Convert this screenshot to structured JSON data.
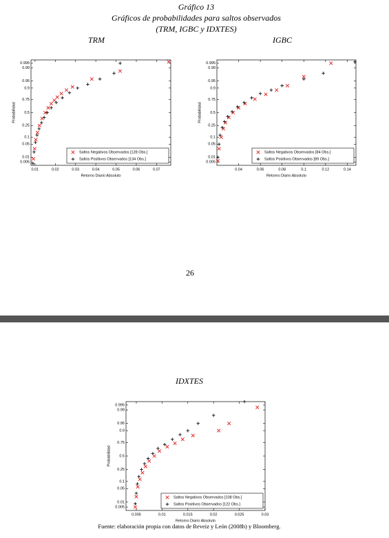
{
  "header": {
    "label": "Gráfico 13",
    "title": "Gráficos de probabilidades para saltos observados",
    "subtitle": "(TRM, IGBC y IDXTES)"
  },
  "page_number": "26",
  "source": "Fuente: elaboración propia con datos de Reveiz y León (2008b) y Bloomberg.",
  "chart_data": [
    {
      "type": "scatter",
      "title": "TRM",
      "x_label": "Retorno Diario Absoluto",
      "y_label": "Probabilidad",
      "yscale": "probability",
      "legend": "lower right",
      "xlim": [
        0.008,
        0.077
      ],
      "xticks": [
        0.01,
        0.02,
        0.03,
        0.04,
        0.05,
        0.06,
        0.07
      ],
      "ylim": [
        0.003,
        0.997
      ],
      "yticks": [
        0.005,
        0.01,
        0.05,
        0.1,
        0.25,
        0.5,
        0.75,
        0.9,
        0.95,
        0.99,
        0.995
      ],
      "series": [
        {
          "name": "Saltos Negativos Observados [128 Obs.]",
          "color": "#e0201b",
          "marker": "x",
          "x": [
            0.0092,
            0.0098,
            0.0104,
            0.0112,
            0.0122,
            0.0135,
            0.015,
            0.0165,
            0.018,
            0.0195,
            0.021,
            0.023,
            0.0255,
            0.0285,
            0.038,
            0.052,
            0.076
          ],
          "values": [
            0.008,
            0.03,
            0.08,
            0.15,
            0.25,
            0.38,
            0.5,
            0.6,
            0.68,
            0.74,
            0.79,
            0.84,
            0.88,
            0.91,
            0.96,
            0.985,
            0.996
          ]
        },
        {
          "name": "Saltos Positivos Observados [134 Obs.]",
          "color": "#111111",
          "marker": "+",
          "x": [
            0.009,
            0.0095,
            0.0102,
            0.011,
            0.012,
            0.0132,
            0.0145,
            0.016,
            0.018,
            0.0205,
            0.0235,
            0.027,
            0.031,
            0.036,
            0.042,
            0.049,
            0.052
          ],
          "values": [
            0.004,
            0.02,
            0.06,
            0.12,
            0.2,
            0.3,
            0.4,
            0.5,
            0.6,
            0.7,
            0.78,
            0.85,
            0.9,
            0.93,
            0.96,
            0.98,
            0.995
          ]
        }
      ]
    },
    {
      "type": "scatter",
      "title": "IGBC",
      "x_label": "Retorno Diario Absoluto",
      "y_label": "Probabilidad",
      "yscale": "probability",
      "legend": "lower right",
      "xlim": [
        0.02,
        0.148
      ],
      "xticks": [
        0.04,
        0.06,
        0.08,
        0.1,
        0.12,
        0.14
      ],
      "ylim": [
        0.003,
        0.997
      ],
      "yticks": [
        0.005,
        0.01,
        0.05,
        0.1,
        0.25,
        0.5,
        0.75,
        0.9,
        0.95,
        0.99,
        0.995
      ],
      "series": [
        {
          "name": "Saltos Negativos Observados [84 Obs.]",
          "color": "#e0201b",
          "marker": "x",
          "x": [
            0.021,
            0.022,
            0.024,
            0.026,
            0.028,
            0.031,
            0.035,
            0.04,
            0.046,
            0.055,
            0.065,
            0.075,
            0.085,
            0.1,
            0.125
          ],
          "values": [
            0.006,
            0.03,
            0.1,
            0.2,
            0.3,
            0.4,
            0.5,
            0.6,
            0.68,
            0.76,
            0.83,
            0.88,
            0.92,
            0.97,
            0.995
          ]
        },
        {
          "name": "Saltos Positivos Observados [89 Obs.]",
          "color": "#111111",
          "marker": "+",
          "x": [
            0.021,
            0.022,
            0.023,
            0.025,
            0.027,
            0.03,
            0.034,
            0.039,
            0.045,
            0.052,
            0.06,
            0.07,
            0.08,
            0.1,
            0.118,
            0.147
          ],
          "values": [
            0.01,
            0.05,
            0.12,
            0.22,
            0.32,
            0.42,
            0.52,
            0.62,
            0.7,
            0.78,
            0.84,
            0.88,
            0.92,
            0.96,
            0.98,
            0.996
          ]
        }
      ]
    },
    {
      "type": "scatter",
      "title": "IDXTES",
      "x_label": "Retorno Diario Absoluto",
      "y_label": "Probabilidad",
      "yscale": "probability",
      "legend": "lower right",
      "xlim": [
        0.003,
        0.03
      ],
      "xticks": [
        0.005,
        0.01,
        0.015,
        0.02,
        0.025,
        0.03
      ],
      "ylim": [
        0.003,
        0.997
      ],
      "yticks": [
        0.005,
        0.01,
        0.05,
        0.1,
        0.25,
        0.5,
        0.75,
        0.9,
        0.95,
        0.99,
        0.995
      ],
      "series": [
        {
          "name": "Saltos Negativos Observados [108 Obs.]",
          "color": "#e0201b",
          "marker": "x",
          "x": [
            0.0048,
            0.005,
            0.0053,
            0.0057,
            0.0062,
            0.0068,
            0.0075,
            0.0085,
            0.0095,
            0.011,
            0.0125,
            0.014,
            0.016,
            0.021,
            0.023,
            0.0285
          ],
          "values": [
            0.005,
            0.02,
            0.06,
            0.12,
            0.2,
            0.3,
            0.4,
            0.5,
            0.6,
            0.68,
            0.74,
            0.8,
            0.85,
            0.9,
            0.95,
            0.993
          ]
        },
        {
          "name": "Saltos Positivos Observados [122 Obs.]",
          "color": "#111111",
          "marker": "+",
          "x": [
            0.0048,
            0.005,
            0.0052,
            0.0055,
            0.006,
            0.0066,
            0.0073,
            0.0082,
            0.0092,
            0.0105,
            0.012,
            0.0135,
            0.015,
            0.017,
            0.02,
            0.026
          ],
          "values": [
            0.008,
            0.03,
            0.08,
            0.15,
            0.25,
            0.35,
            0.45,
            0.55,
            0.65,
            0.72,
            0.8,
            0.86,
            0.9,
            0.95,
            0.98,
            0.997
          ]
        }
      ]
    }
  ]
}
